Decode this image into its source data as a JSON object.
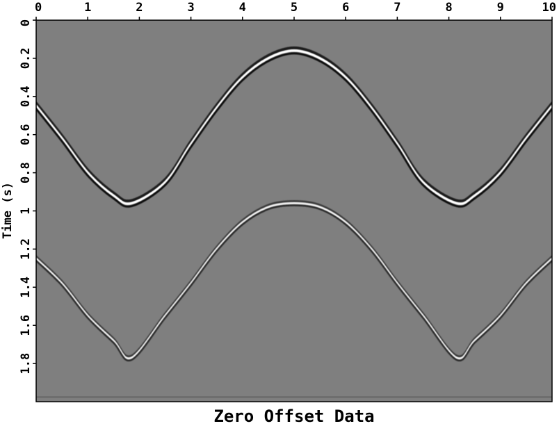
{
  "chart_data": {
    "type": "heatmap",
    "title": "Zero Offset Data",
    "xlabel": "",
    "ylabel": "Time (s)",
    "xlim": [
      0,
      10
    ],
    "ylim": [
      0,
      2.0
    ],
    "x_ticks": [
      "0",
      "1",
      "2",
      "3",
      "4",
      "5",
      "6",
      "7",
      "8",
      "9",
      "10"
    ],
    "y_ticks": [
      "0",
      "0.2",
      "0.4",
      "0.6",
      "0.8",
      "1",
      "1.2",
      "1.4",
      "1.6",
      "1.8"
    ],
    "colormap": "grayscale",
    "background_color": "#7f7f7f",
    "events": [
      {
        "name": "upper-reflection",
        "points": [
          [
            0,
            0.45
          ],
          [
            0.5,
            0.62
          ],
          [
            1.0,
            0.8
          ],
          [
            1.5,
            0.92
          ],
          [
            1.85,
            0.96
          ],
          [
            2.5,
            0.85
          ],
          [
            3.0,
            0.65
          ],
          [
            3.5,
            0.46
          ],
          [
            4.0,
            0.3
          ],
          [
            4.5,
            0.2
          ],
          [
            5.0,
            0.16
          ],
          [
            5.5,
            0.2
          ],
          [
            6.0,
            0.3
          ],
          [
            6.5,
            0.46
          ],
          [
            7.0,
            0.65
          ],
          [
            7.5,
            0.85
          ],
          [
            8.15,
            0.96
          ],
          [
            8.5,
            0.92
          ],
          [
            9.0,
            0.8
          ],
          [
            9.5,
            0.62
          ],
          [
            10.0,
            0.45
          ]
        ],
        "amplitude": "strong"
      },
      {
        "name": "lower-reflection",
        "points": [
          [
            0,
            1.25
          ],
          [
            0.5,
            1.38
          ],
          [
            1.0,
            1.55
          ],
          [
            1.5,
            1.68
          ],
          [
            1.85,
            1.77
          ],
          [
            2.5,
            1.55
          ],
          [
            3.0,
            1.38
          ],
          [
            3.5,
            1.2
          ],
          [
            4.0,
            1.06
          ],
          [
            4.5,
            0.98
          ],
          [
            5.0,
            0.96
          ],
          [
            5.5,
            0.98
          ],
          [
            6.0,
            1.06
          ],
          [
            6.5,
            1.2
          ],
          [
            7.0,
            1.38
          ],
          [
            7.5,
            1.55
          ],
          [
            8.15,
            1.77
          ],
          [
            8.5,
            1.68
          ],
          [
            9.0,
            1.55
          ],
          [
            9.5,
            1.38
          ],
          [
            10.0,
            1.25
          ]
        ],
        "amplitude": "medium"
      }
    ]
  }
}
